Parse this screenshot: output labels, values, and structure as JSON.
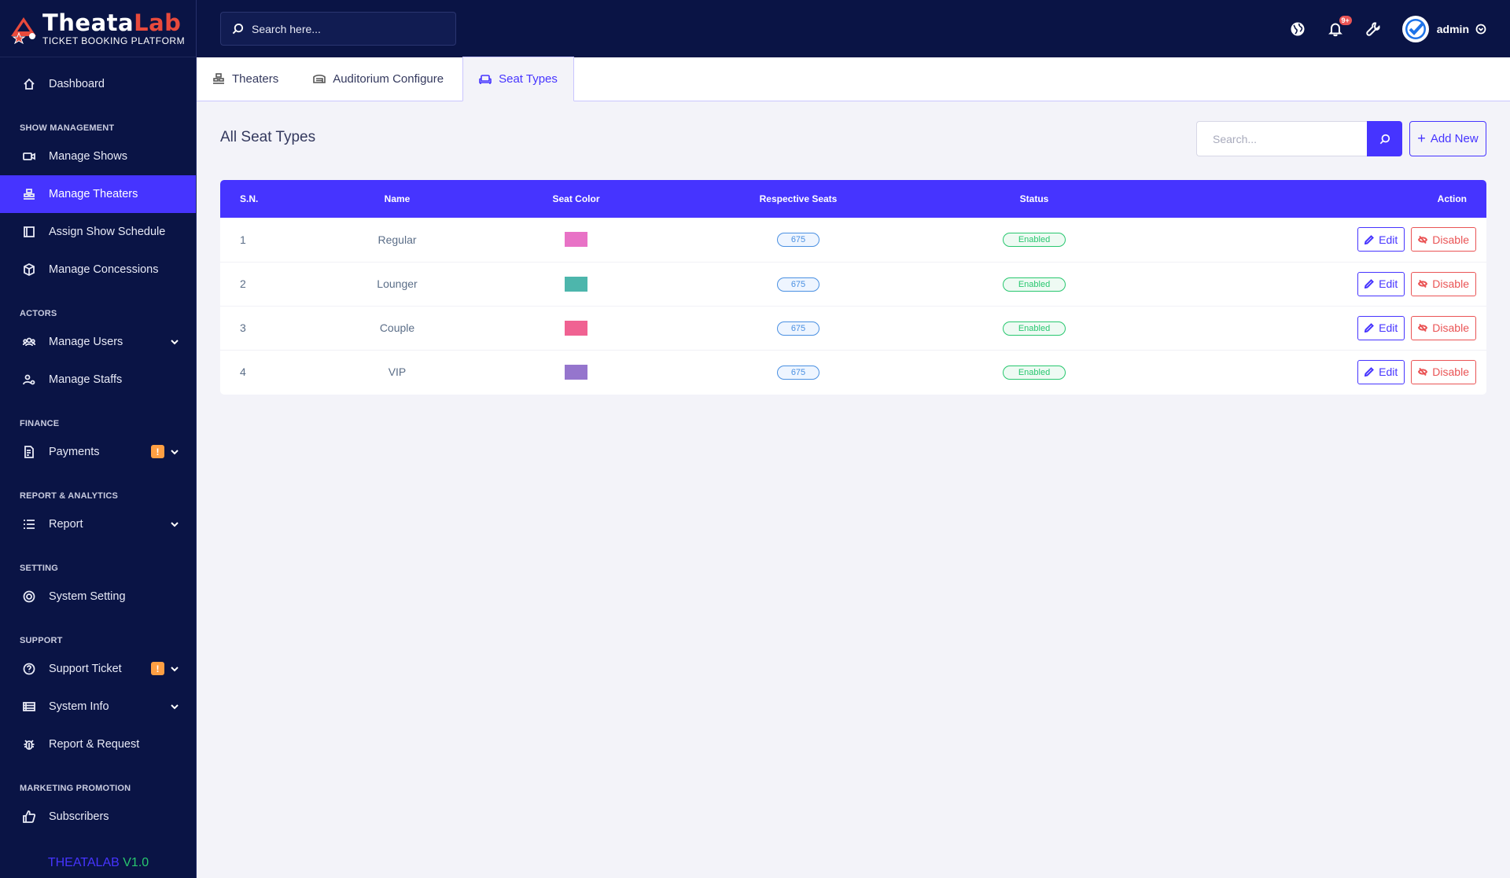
{
  "brand": {
    "title_white": "Theata",
    "title_red": "Lab",
    "subtitle": "TICKET BOOKING PLATFORM"
  },
  "sidebar": {
    "dashboard": "Dashboard",
    "sections": {
      "show": "SHOW MANAGEMENT",
      "actors": "ACTORS",
      "finance": "FINANCE",
      "report": "REPORT & ANALYTICS",
      "setting": "SETTING",
      "support": "SUPPORT",
      "marketing": "MARKETING PROMOTION"
    },
    "items": {
      "manage_shows": "Manage Shows",
      "manage_theaters": "Manage Theaters",
      "assign_schedule": "Assign Show Schedule",
      "manage_concessions": "Manage Concessions",
      "manage_users": "Manage Users",
      "manage_staffs": "Manage Staffs",
      "payments": "Payments",
      "report": "Report",
      "system_setting": "System Setting",
      "support_ticket": "Support Ticket",
      "system_info": "System Info",
      "report_request": "Report & Request",
      "subscribers": "Subscribers"
    },
    "warn_badge": "!",
    "version_a": "THEATALAB",
    "version_b": "V1.0"
  },
  "topbar": {
    "search_placeholder": "Search here...",
    "notification_count": "9+",
    "admin_name": "admin"
  },
  "tabs": {
    "theaters": "Theaters",
    "auditorium": "Auditorium Configure",
    "seat_types": "Seat Types"
  },
  "main": {
    "title": "All Seat Types",
    "search_placeholder": "Search...",
    "add_new": "Add New"
  },
  "table": {
    "headers": {
      "sn": "S.N.",
      "name": "Name",
      "color": "Seat Color",
      "seats": "Respective Seats",
      "status": "Status",
      "action": "Action"
    },
    "edit_label": "Edit",
    "disable_label": "Disable",
    "rows": [
      {
        "sn": "1",
        "name": "Regular",
        "color": "#e872c6",
        "seats": "675",
        "status": "Enabled"
      },
      {
        "sn": "2",
        "name": "Lounger",
        "color": "#4db6ac",
        "seats": "675",
        "status": "Enabled"
      },
      {
        "sn": "3",
        "name": "Couple",
        "color": "#f06292",
        "seats": "675",
        "status": "Enabled"
      },
      {
        "sn": "4",
        "name": "VIP",
        "color": "#9575cd",
        "seats": "675",
        "status": "Enabled"
      }
    ]
  }
}
